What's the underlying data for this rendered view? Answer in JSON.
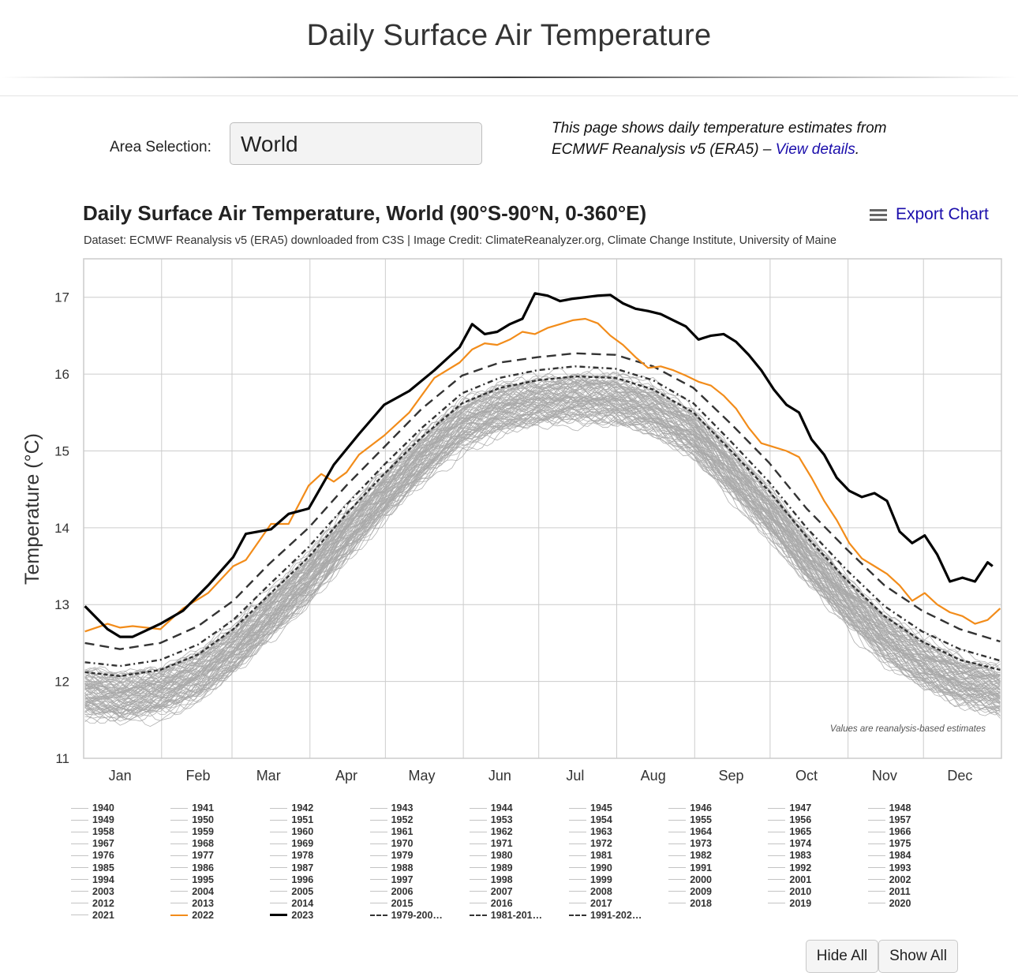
{
  "page": {
    "title": "Daily Surface Air Temperature",
    "area_label": "Area Selection:",
    "area_value": "World",
    "intro_text": "This page shows daily temperature estimates from ECMWF Reanalysis v5 (ERA5) – ",
    "intro_link": "View details",
    "intro_end": "."
  },
  "chart_header": {
    "title": "Daily Surface Air Temperature, World (90°S-90°N, 0-360°E)",
    "subtitle": "Dataset: ECMWF Reanalysis v5 (ERA5) downloaded from C3S | Image Credit: ClimateReanalyzer.org, Climate Change Institute, University of Maine",
    "export_label": "Export Chart"
  },
  "buttons": {
    "hide_all": "Hide All",
    "show_all": "Show All"
  },
  "colors": {
    "historical": "#a9a9a9",
    "y2022": "#f28c1a",
    "y2023": "#000000",
    "averages": "#333333",
    "link": "#1a0dab"
  },
  "chart_data": {
    "type": "line",
    "ylabel": "Temperature (°C)",
    "xlabel": "",
    "ylim": [
      11,
      17.5
    ],
    "y_ticks": [
      11,
      12,
      13,
      14,
      15,
      16,
      17
    ],
    "x_ticks": [
      {
        "label": "Jan",
        "day": 15
      },
      {
        "label": "Feb",
        "day": 46
      },
      {
        "label": "Mar",
        "day": 74
      },
      {
        "label": "Apr",
        "day": 105
      },
      {
        "label": "May",
        "day": 135
      },
      {
        "label": "Jun",
        "day": 166
      },
      {
        "label": "Jul",
        "day": 196
      },
      {
        "label": "Aug",
        "day": 227
      },
      {
        "label": "Sep",
        "day": 258
      },
      {
        "label": "Oct",
        "day": 288
      },
      {
        "label": "Nov",
        "day": 319
      },
      {
        "label": "Dec",
        "day": 349
      }
    ],
    "month_boundaries": [
      31,
      59,
      90,
      120,
      151,
      181,
      212,
      243,
      273,
      304,
      334
    ],
    "annotation": "Values are reanalysis-based estimates",
    "grid": true,
    "series": [
      {
        "name": "2023",
        "style": "solid-thick",
        "color": "#000000",
        "x": [
          1,
          10,
          15,
          20,
          31,
          40,
          50,
          60,
          65,
          75,
          82,
          90,
          100,
          110,
          120,
          130,
          140,
          150,
          155,
          160,
          165,
          170,
          175,
          180,
          185,
          190,
          195,
          200,
          205,
          210,
          215,
          220,
          225,
          230,
          235,
          240,
          245,
          250,
          255,
          260,
          265,
          270,
          275,
          280,
          285,
          290,
          295,
          300,
          305,
          310,
          315,
          320,
          325,
          330,
          335,
          340,
          345,
          350,
          355,
          360,
          362
        ],
        "y": [
          12.98,
          12.68,
          12.58,
          12.58,
          12.75,
          12.92,
          13.25,
          13.62,
          13.92,
          13.98,
          14.18,
          14.25,
          14.82,
          15.22,
          15.6,
          15.78,
          16.05,
          16.35,
          16.65,
          16.52,
          16.55,
          16.65,
          16.72,
          17.05,
          17.02,
          16.95,
          16.98,
          17.0,
          17.02,
          17.03,
          16.92,
          16.85,
          16.82,
          16.78,
          16.7,
          16.62,
          16.45,
          16.5,
          16.52,
          16.42,
          16.25,
          16.05,
          15.8,
          15.6,
          15.5,
          15.15,
          14.95,
          14.65,
          14.48,
          14.4,
          14.45,
          14.35,
          13.95,
          13.8,
          13.9,
          13.65,
          13.3,
          13.35,
          13.3,
          13.55,
          13.5
        ]
      },
      {
        "name": "2022",
        "style": "solid",
        "color": "#f28c1a",
        "x": [
          1,
          10,
          15,
          20,
          31,
          40,
          50,
          60,
          65,
          75,
          82,
          90,
          95,
          100,
          105,
          110,
          120,
          130,
          140,
          150,
          155,
          160,
          165,
          170,
          175,
          180,
          185,
          190,
          195,
          200,
          205,
          210,
          215,
          220,
          225,
          230,
          235,
          240,
          245,
          250,
          255,
          260,
          265,
          270,
          275,
          280,
          285,
          290,
          295,
          300,
          305,
          310,
          315,
          320,
          325,
          330,
          335,
          340,
          345,
          350,
          355,
          360,
          365
        ],
        "y": [
          12.65,
          12.75,
          12.7,
          12.72,
          12.68,
          12.95,
          13.15,
          13.5,
          13.58,
          14.05,
          14.05,
          14.55,
          14.7,
          14.6,
          14.72,
          14.95,
          15.2,
          15.5,
          15.95,
          16.15,
          16.32,
          16.4,
          16.38,
          16.45,
          16.55,
          16.52,
          16.6,
          16.65,
          16.7,
          16.72,
          16.66,
          16.5,
          16.38,
          16.22,
          16.08,
          16.1,
          16.05,
          15.98,
          15.9,
          15.85,
          15.72,
          15.55,
          15.3,
          15.1,
          15.05,
          15.0,
          14.92,
          14.65,
          14.35,
          14.1,
          13.8,
          13.6,
          13.5,
          13.4,
          13.25,
          13.05,
          13.15,
          13.0,
          12.9,
          12.85,
          12.75,
          12.8,
          12.95
        ]
      },
      {
        "name": "1979-200…",
        "style": "dash-wide",
        "color": "#333333",
        "x": [
          1,
          15,
          31,
          46,
          60,
          74,
          90,
          105,
          120,
          135,
          151,
          166,
          181,
          196,
          212,
          227,
          243,
          258,
          273,
          288,
          304,
          319,
          334,
          349,
          365
        ],
        "y": [
          12.5,
          12.42,
          12.5,
          12.72,
          13.05,
          13.52,
          14.0,
          14.55,
          15.05,
          15.55,
          15.98,
          16.15,
          16.22,
          16.27,
          16.25,
          16.1,
          15.82,
          15.35,
          14.85,
          14.25,
          13.72,
          13.25,
          12.92,
          12.68,
          12.52
        ]
      },
      {
        "name": "1981-201…",
        "style": "dash-dot",
        "color": "#333333",
        "x": [
          1,
          15,
          31,
          46,
          60,
          74,
          90,
          105,
          120,
          135,
          151,
          166,
          181,
          196,
          212,
          227,
          243,
          258,
          273,
          288,
          304,
          319,
          334,
          349,
          365
        ],
        "y": [
          12.25,
          12.2,
          12.28,
          12.48,
          12.8,
          13.25,
          13.75,
          14.3,
          14.82,
          15.3,
          15.75,
          15.95,
          16.05,
          16.1,
          16.07,
          15.92,
          15.62,
          15.12,
          14.6,
          14.0,
          13.45,
          12.98,
          12.65,
          12.42,
          12.27
        ]
      },
      {
        "name": "1991-202…",
        "style": "dash-tight",
        "color": "#333333",
        "x": [
          1,
          15,
          31,
          46,
          60,
          74,
          90,
          105,
          120,
          135,
          151,
          166,
          181,
          196,
          212,
          227,
          243,
          258,
          273,
          288,
          304,
          319,
          334,
          349,
          365
        ],
        "y": [
          12.12,
          12.07,
          12.15,
          12.35,
          12.68,
          13.12,
          13.62,
          14.18,
          14.7,
          15.18,
          15.62,
          15.82,
          15.92,
          15.97,
          15.95,
          15.8,
          15.5,
          15.0,
          14.48,
          13.88,
          13.32,
          12.85,
          12.52,
          12.28,
          12.15
        ]
      }
    ],
    "historical_years": {
      "first": 1940,
      "last": 2021,
      "count": 82
    },
    "legend": [
      "1940",
      "1941",
      "1942",
      "1943",
      "1944",
      "1945",
      "1946",
      "1947",
      "1948",
      "1949",
      "1950",
      "1951",
      "1952",
      "1953",
      "1954",
      "1955",
      "1956",
      "1957",
      "1958",
      "1959",
      "1960",
      "1961",
      "1962",
      "1963",
      "1964",
      "1965",
      "1966",
      "1967",
      "1968",
      "1969",
      "1970",
      "1971",
      "1972",
      "1973",
      "1974",
      "1975",
      "1976",
      "1977",
      "1978",
      "1979",
      "1980",
      "1981",
      "1982",
      "1983",
      "1984",
      "1985",
      "1986",
      "1987",
      "1988",
      "1989",
      "1990",
      "1991",
      "1992",
      "1993",
      "1994",
      "1995",
      "1996",
      "1997",
      "1998",
      "1999",
      "2000",
      "2001",
      "2002",
      "2003",
      "2004",
      "2005",
      "2006",
      "2007",
      "2008",
      "2009",
      "2010",
      "2011",
      "2012",
      "2013",
      "2014",
      "2015",
      "2016",
      "2017",
      "2018",
      "2019",
      "2020",
      "2021",
      "2022",
      "2023",
      "1979-200…",
      "1981-201…",
      "1991-202…"
    ]
  }
}
